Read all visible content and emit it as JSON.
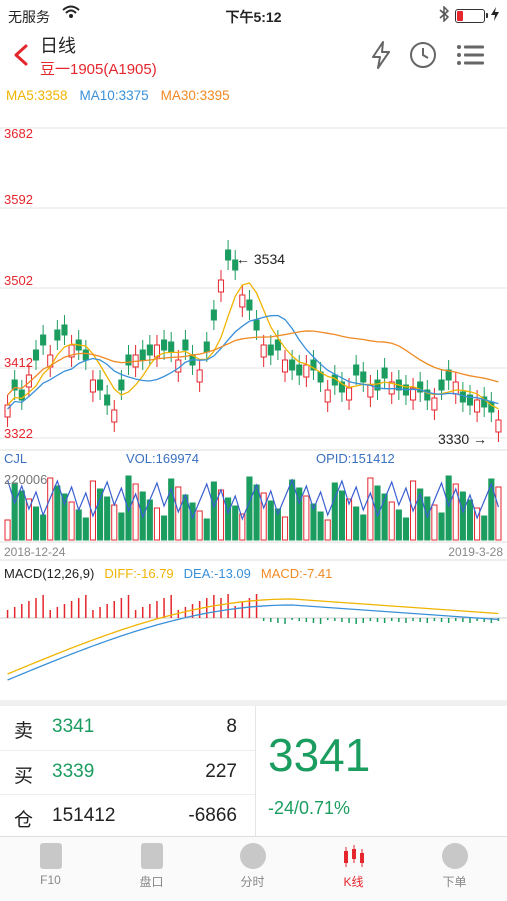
{
  "status_bar": {
    "carrier": "无服务",
    "time": "下午5:12"
  },
  "header": {
    "title": "日线",
    "subtitle": "豆一1905(A1905)"
  },
  "ma_line": [
    {
      "label": "MA5:3358",
      "color": "#f0b400"
    },
    {
      "label": "MA10:3375",
      "color": "#3a90d8"
    },
    {
      "label": "MA30:3395",
      "color": "#f08a24"
    }
  ],
  "price_axis": [
    "3682",
    "3592",
    "3502",
    "3412",
    "3322"
  ],
  "markers": {
    "high": "3534",
    "low": "3330"
  },
  "volume": {
    "label": "CJL",
    "vol": "VOL:169974",
    "opid": "OPID:151412",
    "scale": "220006"
  },
  "dates": {
    "start": "2018-12-24",
    "end": "2019-3-28"
  },
  "macd": {
    "label": "MACD(12,26,9)",
    "diff": "DIFF:-16.79",
    "dea": "DEA:-13.09",
    "macd": "MACD:-7.41"
  },
  "order_book": [
    {
      "side": "卖",
      "price": "3341",
      "qty": "8"
    },
    {
      "side": "买",
      "price": "3339",
      "qty": "227"
    },
    {
      "side": "仓",
      "price": "151412",
      "qty": "-6866"
    }
  ],
  "last_price": "3341",
  "change": "-24/0.71%",
  "tabs": [
    {
      "label": "F10",
      "active": false
    },
    {
      "label": "盘口",
      "active": false
    },
    {
      "label": "分时",
      "active": false
    },
    {
      "label": "K线",
      "active": true
    },
    {
      "label": "下单",
      "active": false
    }
  ],
  "colors": {
    "up": "#e5262d",
    "down": "#1c9d60",
    "ma5": "#f0b400",
    "ma10": "#3a90d8",
    "ma30": "#f08a24"
  },
  "chart_data": {
    "type": "candlestick",
    "y_ticks": [
      3682,
      3592,
      3502,
      3412,
      3322
    ],
    "date_range": [
      "2018-12-24",
      "2019-3-28"
    ],
    "high_label": 3534,
    "low_label": 3330,
    "vol_scale": 220006
  }
}
